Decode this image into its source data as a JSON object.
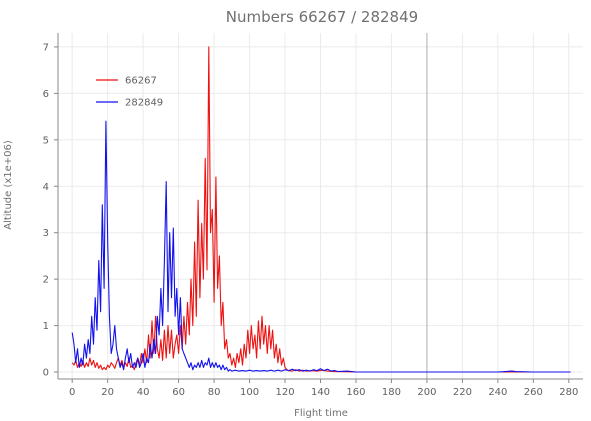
{
  "chart_data": {
    "type": "line",
    "title": "Numbers 66267 / 282849",
    "xlabel": "Flight time",
    "ylabel": "Altitude (x1e+06)",
    "xlim": [
      -8,
      288
    ],
    "ylim": [
      -0.15,
      7.3
    ],
    "xticks": [
      0,
      20,
      40,
      60,
      80,
      100,
      120,
      140,
      160,
      180,
      200,
      220,
      240,
      260,
      280
    ],
    "yticks": [
      0,
      1,
      2,
      3,
      4,
      5,
      6,
      7
    ],
    "grid": true,
    "vline_x": 200,
    "legend_position": "top-left",
    "series": [
      {
        "name": "66267",
        "color": "#ee1111",
        "points": [
          [
            0,
            0.2
          ],
          [
            1,
            0.15
          ],
          [
            2,
            0.25
          ],
          [
            3,
            0.1
          ],
          [
            4,
            0.2
          ],
          [
            5,
            0.12
          ],
          [
            6,
            0.25
          ],
          [
            7,
            0.1
          ],
          [
            8,
            0.2
          ],
          [
            9,
            0.12
          ],
          [
            10,
            0.3
          ],
          [
            11,
            0.15
          ],
          [
            12,
            0.25
          ],
          [
            13,
            0.1
          ],
          [
            14,
            0.2
          ],
          [
            15,
            0.08
          ],
          [
            16,
            0.15
          ],
          [
            17,
            0.05
          ],
          [
            18,
            0.1
          ],
          [
            19,
            0.05
          ],
          [
            20,
            0.15
          ],
          [
            21,
            0.1
          ],
          [
            22,
            0.2
          ],
          [
            23,
            0.15
          ],
          [
            24,
            0.08
          ],
          [
            25,
            0.2
          ],
          [
            26,
            0.3
          ],
          [
            27,
            0.15
          ],
          [
            28,
            0.25
          ],
          [
            29,
            0.1
          ],
          [
            30,
            0.2
          ],
          [
            31,
            0.12
          ],
          [
            32,
            0.3
          ],
          [
            33,
            0.1
          ],
          [
            34,
            0.15
          ],
          [
            35,
            0.05
          ],
          [
            36,
            0.2
          ],
          [
            37,
            0.3
          ],
          [
            38,
            0.15
          ],
          [
            39,
            0.4
          ],
          [
            40,
            0.2
          ],
          [
            41,
            0.5
          ],
          [
            42,
            0.2
          ],
          [
            43,
            0.8
          ],
          [
            44,
            0.3
          ],
          [
            45,
            1.1
          ],
          [
            46,
            0.4
          ],
          [
            47,
            1.2
          ],
          [
            48,
            0.5
          ],
          [
            49,
            0.3
          ],
          [
            50,
            0.7
          ],
          [
            51,
            0.25
          ],
          [
            52,
            0.9
          ],
          [
            53,
            0.3
          ],
          [
            54,
            1.0
          ],
          [
            55,
            0.4
          ],
          [
            56,
            0.9
          ],
          [
            57,
            0.3
          ],
          [
            58,
            0.6
          ],
          [
            59,
            0.8
          ],
          [
            60,
            0.4
          ],
          [
            61,
            1.0
          ],
          [
            62,
            0.5
          ],
          [
            63,
            1.2
          ],
          [
            64,
            0.6
          ],
          [
            65,
            1.5
          ],
          [
            66,
            0.8
          ],
          [
            67,
            2.0
          ],
          [
            68,
            1.0
          ],
          [
            69,
            2.8
          ],
          [
            70,
            1.2
          ],
          [
            71,
            3.7
          ],
          [
            72,
            1.6
          ],
          [
            73,
            3.2
          ],
          [
            74,
            2.0
          ],
          [
            75,
            4.6
          ],
          [
            76,
            2.2
          ],
          [
            77,
            7.0
          ],
          [
            78,
            3.0
          ],
          [
            79,
            3.5
          ],
          [
            80,
            1.5
          ],
          [
            81,
            4.2
          ],
          [
            82,
            1.8
          ],
          [
            83,
            2.5
          ],
          [
            84,
            1.0
          ],
          [
            85,
            1.5
          ],
          [
            86,
            0.5
          ],
          [
            87,
            0.7
          ],
          [
            88,
            0.3
          ],
          [
            89,
            0.4
          ],
          [
            90,
            0.15
          ],
          [
            91,
            0.3
          ],
          [
            92,
            0.1
          ],
          [
            93,
            0.4
          ],
          [
            94,
            0.2
          ],
          [
            95,
            0.5
          ],
          [
            96,
            0.15
          ],
          [
            97,
            0.6
          ],
          [
            98,
            0.3
          ],
          [
            99,
            0.9
          ],
          [
            100,
            0.4
          ],
          [
            101,
            1.0
          ],
          [
            102,
            0.5
          ],
          [
            103,
            0.8
          ],
          [
            104,
            0.3
          ],
          [
            105,
            1.1
          ],
          [
            106,
            0.5
          ],
          [
            107,
            1.2
          ],
          [
            108,
            0.6
          ],
          [
            109,
            1.0
          ],
          [
            110,
            0.4
          ],
          [
            111,
            1.0
          ],
          [
            112,
            0.5
          ],
          [
            113,
            0.9
          ],
          [
            114,
            0.3
          ],
          [
            115,
            0.6
          ],
          [
            116,
            0.2
          ],
          [
            117,
            0.5
          ],
          [
            118,
            0.15
          ],
          [
            119,
            0.3
          ],
          [
            120,
            0.1
          ],
          [
            121,
            0.05
          ],
          [
            122,
            0.03
          ],
          [
            124,
            0.02
          ],
          [
            126,
            0.05
          ],
          [
            128,
            0.02
          ],
          [
            130,
            0.04
          ],
          [
            132,
            0.02
          ],
          [
            135,
            0.03
          ],
          [
            138,
            0.02
          ],
          [
            141,
            0.04
          ],
          [
            144,
            0.02
          ],
          [
            148,
            0.01
          ],
          [
            150,
            0.01
          ],
          [
            160,
            0.0
          ],
          [
            180,
            0.0
          ],
          [
            200,
            0.0
          ],
          [
            220,
            0.0
          ],
          [
            240,
            0.0
          ],
          [
            260,
            0.0
          ],
          [
            281,
            0.0
          ]
        ]
      },
      {
        "name": "282849",
        "color": "#1111ee",
        "points": [
          [
            0,
            0.85
          ],
          [
            1,
            0.6
          ],
          [
            2,
            0.2
          ],
          [
            3,
            0.5
          ],
          [
            4,
            0.1
          ],
          [
            5,
            0.3
          ],
          [
            6,
            0.15
          ],
          [
            7,
            0.6
          ],
          [
            8,
            0.3
          ],
          [
            9,
            0.7
          ],
          [
            10,
            0.4
          ],
          [
            11,
            1.2
          ],
          [
            12,
            0.6
          ],
          [
            13,
            1.6
          ],
          [
            14,
            0.9
          ],
          [
            15,
            2.4
          ],
          [
            16,
            1.3
          ],
          [
            17,
            3.6
          ],
          [
            18,
            1.8
          ],
          [
            19,
            5.4
          ],
          [
            20,
            2.8
          ],
          [
            21,
            1.2
          ],
          [
            22,
            0.4
          ],
          [
            23,
            0.6
          ],
          [
            24,
            1.0
          ],
          [
            25,
            0.5
          ],
          [
            26,
            0.3
          ],
          [
            27,
            0.1
          ],
          [
            28,
            0.2
          ],
          [
            29,
            0.05
          ],
          [
            30,
            0.3
          ],
          [
            31,
            0.5
          ],
          [
            32,
            0.2
          ],
          [
            33,
            0.4
          ],
          [
            34,
            0.1
          ],
          [
            35,
            0.2
          ],
          [
            36,
            0.1
          ],
          [
            37,
            0.3
          ],
          [
            38,
            0.1
          ],
          [
            39,
            0.2
          ],
          [
            40,
            0.4
          ],
          [
            41,
            0.1
          ],
          [
            42,
            0.3
          ],
          [
            43,
            0.2
          ],
          [
            44,
            0.6
          ],
          [
            45,
            0.3
          ],
          [
            46,
            0.7
          ],
          [
            47,
            0.4
          ],
          [
            48,
            1.2
          ],
          [
            49,
            0.8
          ],
          [
            50,
            1.8
          ],
          [
            51,
            1.0
          ],
          [
            52,
            2.4
          ],
          [
            53,
            4.1
          ],
          [
            54,
            1.3
          ],
          [
            55,
            3.0
          ],
          [
            56,
            1.6
          ],
          [
            57,
            3.1
          ],
          [
            58,
            1.2
          ],
          [
            59,
            1.8
          ],
          [
            60,
            0.8
          ],
          [
            61,
            1.6
          ],
          [
            62,
            0.5
          ],
          [
            63,
            0.4
          ],
          [
            64,
            0.3
          ],
          [
            65,
            0.2
          ],
          [
            66,
            0.1
          ],
          [
            67,
            0.2
          ],
          [
            68,
            0.05
          ],
          [
            69,
            0.15
          ],
          [
            70,
            0.1
          ],
          [
            71,
            0.2
          ],
          [
            72,
            0.1
          ],
          [
            73,
            0.25
          ],
          [
            74,
            0.1
          ],
          [
            75,
            0.2
          ],
          [
            76,
            0.15
          ],
          [
            77,
            0.3
          ],
          [
            78,
            0.1
          ],
          [
            79,
            0.2
          ],
          [
            80,
            0.1
          ],
          [
            81,
            0.2
          ],
          [
            82,
            0.1
          ],
          [
            83,
            0.15
          ],
          [
            84,
            0.05
          ],
          [
            85,
            0.15
          ],
          [
            86,
            0.05
          ],
          [
            87,
            0.1
          ],
          [
            88,
            0.02
          ],
          [
            89,
            0.05
          ],
          [
            90,
            0.02
          ],
          [
            92,
            0.04
          ],
          [
            94,
            0.02
          ],
          [
            96,
            0.03
          ],
          [
            98,
            0.02
          ],
          [
            100,
            0.04
          ],
          [
            102,
            0.02
          ],
          [
            104,
            0.03
          ],
          [
            106,
            0.02
          ],
          [
            108,
            0.03
          ],
          [
            110,
            0.02
          ],
          [
            112,
            0.04
          ],
          [
            114,
            0.02
          ],
          [
            116,
            0.04
          ],
          [
            118,
            0.02
          ],
          [
            120,
            0.05
          ],
          [
            122,
            0.03
          ],
          [
            124,
            0.06
          ],
          [
            126,
            0.03
          ],
          [
            128,
            0.05
          ],
          [
            130,
            0.02
          ],
          [
            132,
            0.04
          ],
          [
            134,
            0.02
          ],
          [
            136,
            0.05
          ],
          [
            138,
            0.03
          ],
          [
            140,
            0.07
          ],
          [
            142,
            0.03
          ],
          [
            144,
            0.06
          ],
          [
            146,
            0.02
          ],
          [
            148,
            0.03
          ],
          [
            150,
            0.01
          ],
          [
            155,
            0.02
          ],
          [
            160,
            0.0
          ],
          [
            180,
            0.0
          ],
          [
            200,
            0.0
          ],
          [
            220,
            0.0
          ],
          [
            240,
            0.0
          ],
          [
            248,
            0.02
          ],
          [
            250,
            0.01
          ],
          [
            260,
            0.0
          ],
          [
            281,
            0.0
          ]
        ]
      }
    ]
  }
}
